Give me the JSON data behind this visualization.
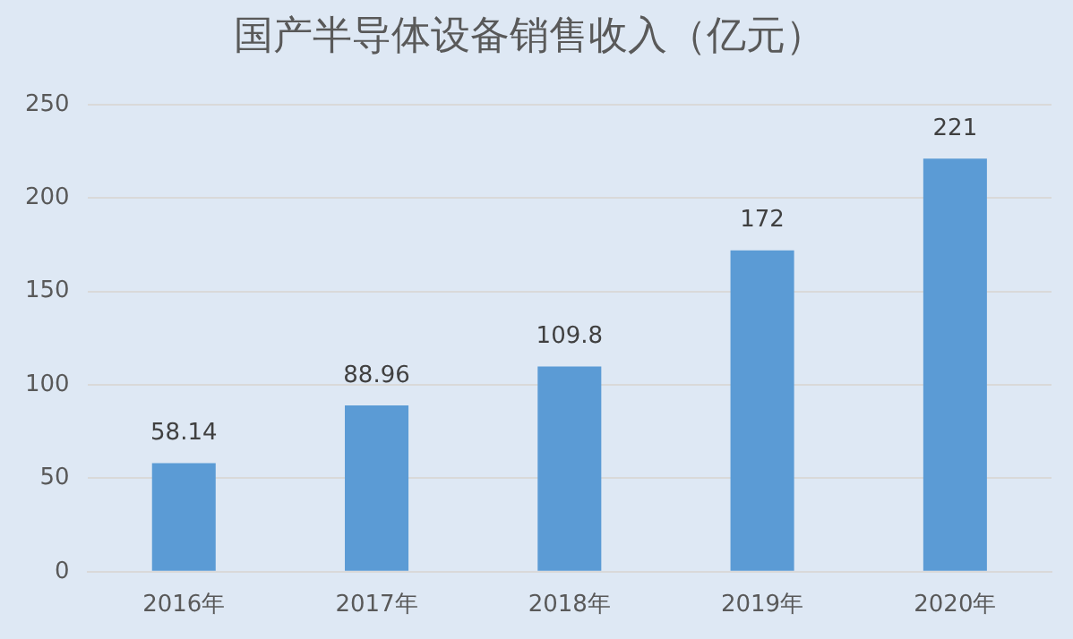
{
  "chart_data": {
    "type": "bar",
    "title": "国产半导体设备销售收入（亿元）",
    "categories": [
      "2016年",
      "2017年",
      "2018年",
      "2019年",
      "2020年"
    ],
    "values": [
      58.14,
      88.96,
      109.8,
      172,
      221
    ],
    "color": "#5b9bd5",
    "ylim": [
      0,
      250
    ],
    "yticks": [
      0,
      50,
      100,
      150,
      200,
      250
    ],
    "grid": "y",
    "data_labels": true,
    "legend": false
  }
}
